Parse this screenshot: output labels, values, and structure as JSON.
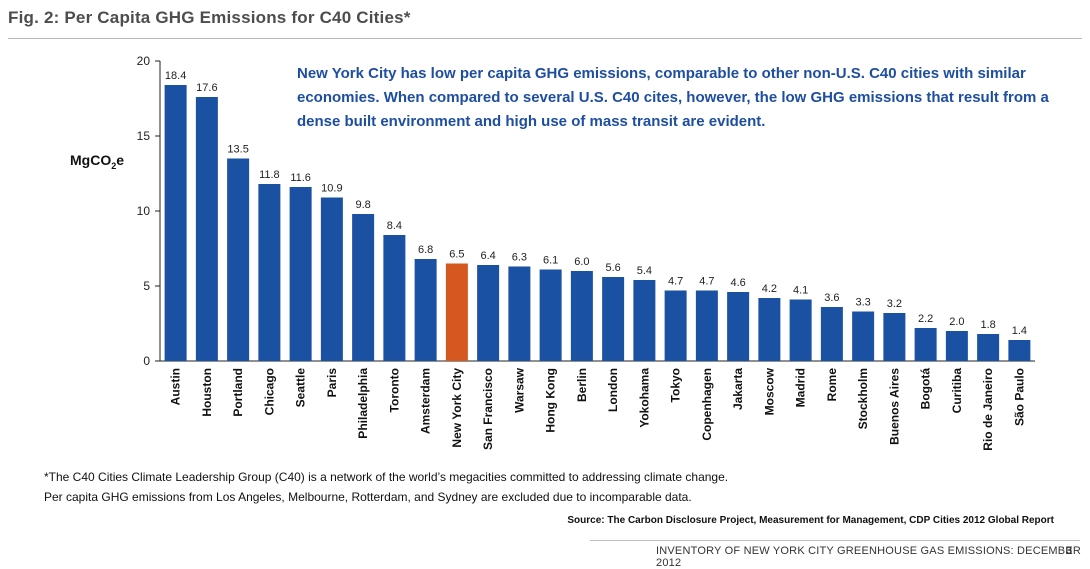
{
  "header": {
    "title": "Fig. 2: Per Capita GHG Emissions for C40 Cities*"
  },
  "annotation": "New York City has low per capita GHG emissions, comparable to other non-U.S. C40 cities with similar economies. When compared to several U.S. C40 cites, however, the low GHG emissions that result from a dense built environment and high use of mass transit are evident.",
  "chart_data": {
    "type": "bar",
    "title": "Fig. 2: Per Capita GHG Emissions for C40 Cities*",
    "xlabel": "",
    "ylabel": "MgCO2e",
    "ylim": [
      0,
      20
    ],
    "yticks": [
      "0",
      "5",
      "10",
      "15",
      "20"
    ],
    "grid": false,
    "categories": [
      "Austin",
      "Houston",
      "Portland",
      "Chicago",
      "Seattle",
      "Paris",
      "Philadelphia",
      "Toronto",
      "Amsterdam",
      "New York City",
      "San Francisco",
      "Warsaw",
      "Hong Kong",
      "Berlin",
      "London",
      "Yokohama",
      "Tokyo",
      "Copenhagen",
      "Jakarta",
      "Moscow",
      "Madrid",
      "Rome",
      "Stockholm",
      "Buenos Aires",
      "Bogotá",
      "Curitiba",
      "Rio de Janeiro",
      "São Paulo"
    ],
    "values": [
      18.4,
      17.6,
      13.5,
      11.8,
      11.6,
      10.9,
      9.8,
      8.4,
      6.8,
      6.5,
      6.4,
      6.3,
      6.1,
      6.0,
      5.6,
      5.4,
      4.7,
      4.7,
      4.6,
      4.2,
      4.1,
      3.6,
      3.3,
      3.2,
      2.2,
      2.0,
      1.8,
      1.4
    ],
    "value_labels": [
      "18.4",
      "17.6",
      "13.5",
      "11.8",
      "11.6",
      "10.9",
      "9.8",
      "8.4",
      "6.8",
      "6.5",
      "6.4",
      "6.3",
      "6.1",
      "6.0",
      "5.6",
      "5.4",
      "4.7",
      "4.7",
      "4.6",
      "4.2",
      "4.1",
      "3.6",
      "3.3",
      "3.2",
      "2.2",
      "2.0",
      "1.8",
      "1.4"
    ],
    "bar_color": "#1a51a3",
    "highlight": {
      "category": "New York City",
      "color": "#d4581f"
    }
  },
  "ylabel": {
    "main": "MgCO",
    "sub": "2",
    "suffix": "e"
  },
  "footnote": {
    "line1": "*The C40 Cities Climate Leadership Group (C40) is a network of the world’s megacities committed to addressing climate change.",
    "line2": "Per capita GHG emissions from Los Angeles, Melbourne, Rotterdam, and Sydney are excluded due to incomparable data."
  },
  "source": "Source: The Carbon Disclosure Project, Measurement for Management, CDP Cities 2012 Global Report",
  "footer": {
    "text": "INVENTORY OF NEW YORK CITY GREENHOUSE GAS EMISSIONS: DECEMBER 2012",
    "page": "3"
  }
}
